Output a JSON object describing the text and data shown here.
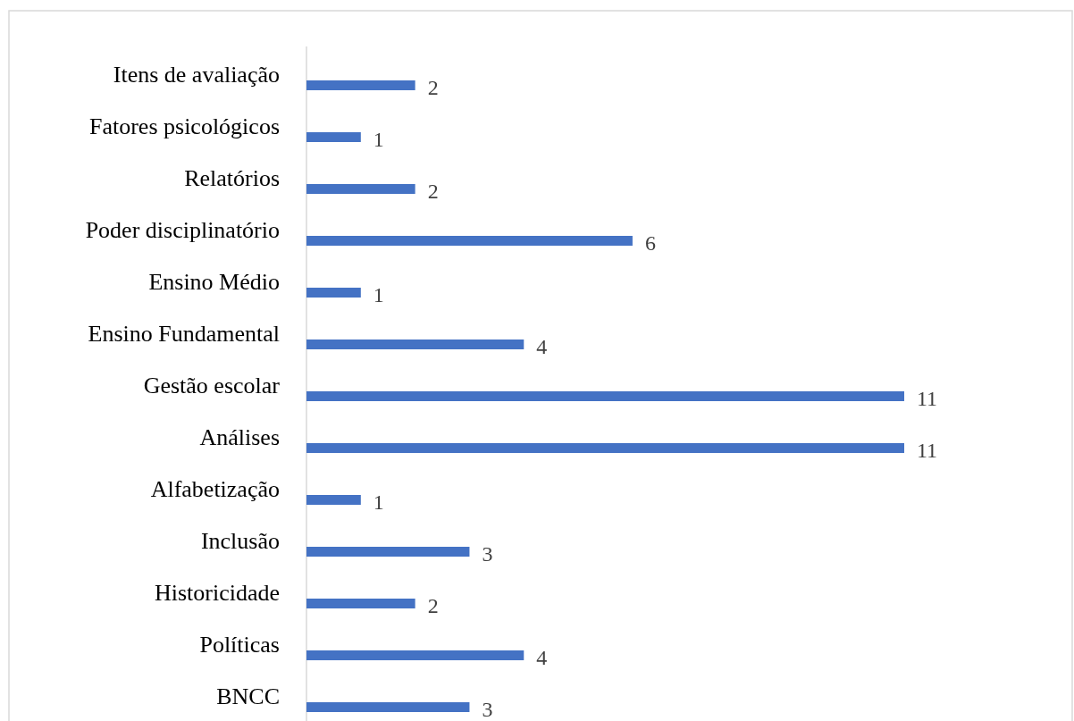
{
  "chart_data": {
    "type": "bar",
    "orientation": "horizontal",
    "categories": [
      "Itens de avaliação",
      "Fatores psicológicos",
      "Relatórios",
      "Poder disciplinatório",
      "Ensino Médio",
      "Ensino Fundamental",
      "Gestão escolar",
      "Análises",
      "Alfabetização",
      "Inclusão",
      "Historicidade",
      "Políticas",
      "BNCC"
    ],
    "values": [
      2,
      1,
      2,
      6,
      1,
      4,
      11,
      11,
      1,
      3,
      2,
      4,
      3
    ],
    "color": "#4472c4",
    "data_labels": true
  }
}
